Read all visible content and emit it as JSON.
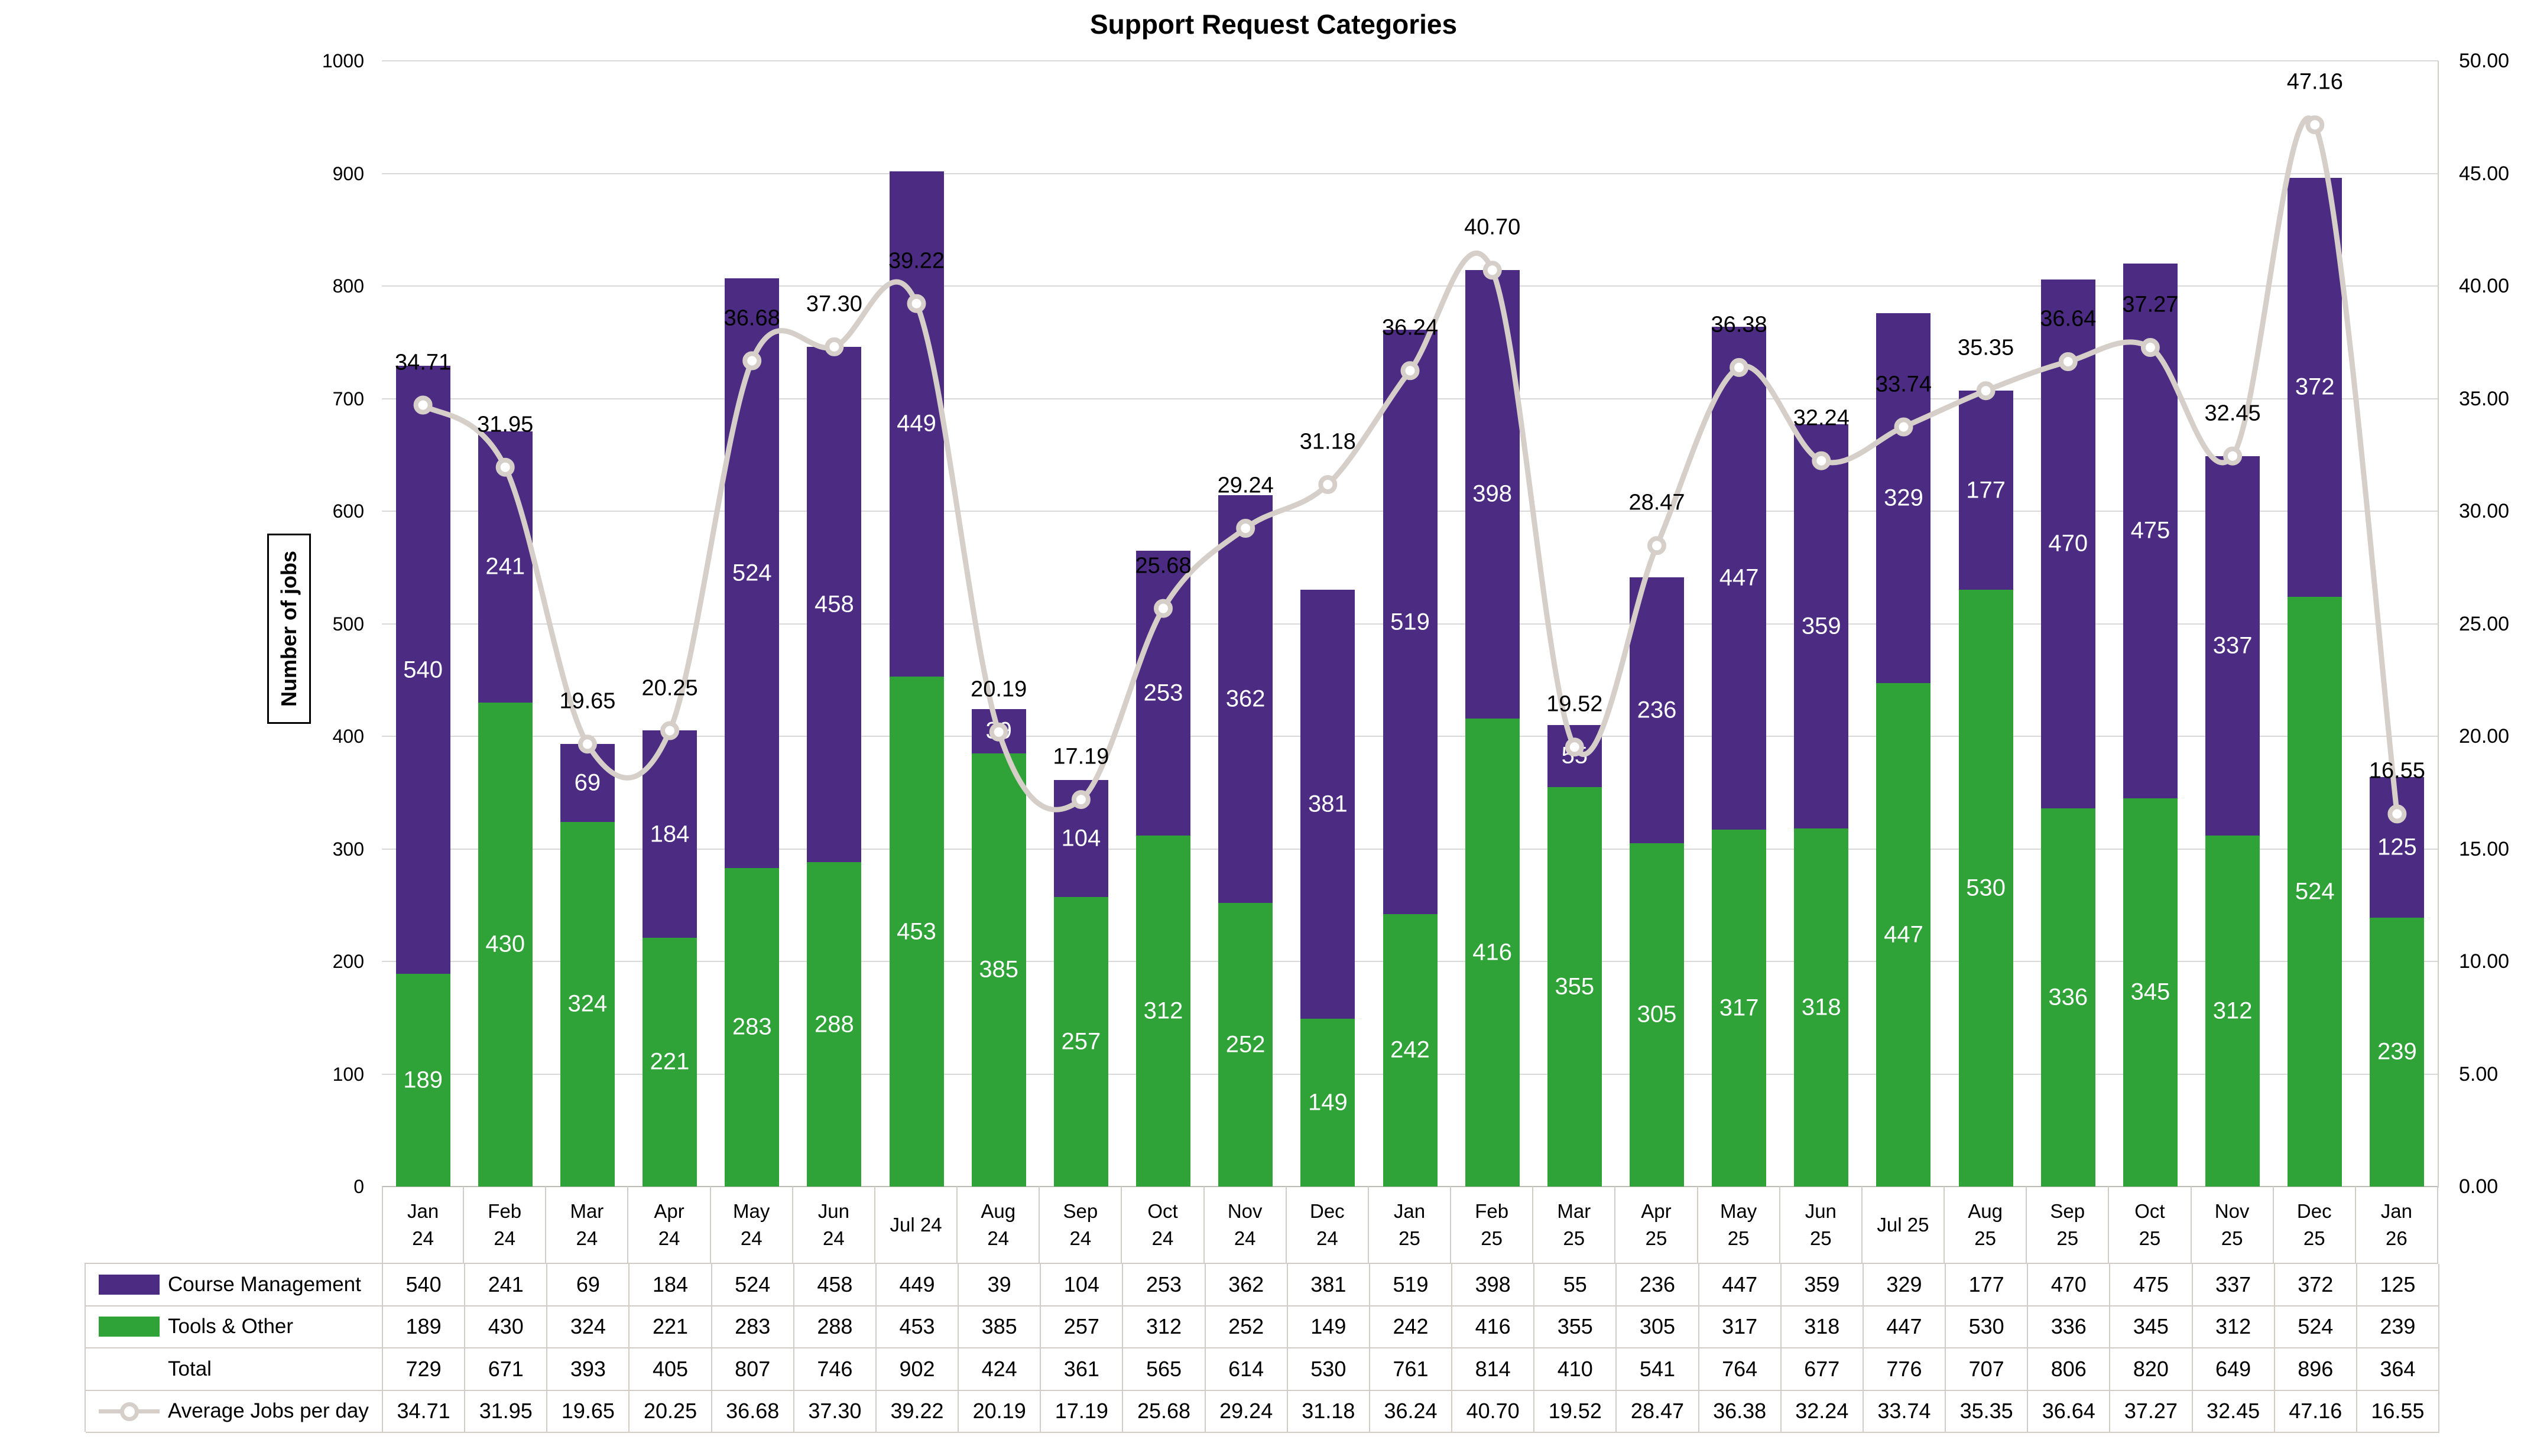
{
  "title": "Support Request Categories",
  "left_axis": {
    "title": "Number of jobs",
    "min": 0,
    "max": 1000,
    "step": 100,
    "tick_labels": [
      "0",
      "100",
      "200",
      "300",
      "400",
      "500",
      "600",
      "700",
      "800",
      "900",
      "1000"
    ]
  },
  "right_axis": {
    "min": 0,
    "max": 50,
    "step": 5,
    "decimals": 2,
    "tick_labels": [
      "0.00",
      "5.00",
      "10.00",
      "15.00",
      "20.00",
      "25.00",
      "30.00",
      "35.00",
      "40.00",
      "45.00",
      "50.00"
    ]
  },
  "colors": {
    "course_management": "#4C2C82",
    "tools_other": "#2FA238",
    "trend_line": "#D6CFC9",
    "gridline": "#D9D9D9",
    "axis_line": "#BFBBB7",
    "table_border": "#D2CCC6",
    "bar_label": "#FFFFFF",
    "text": "#000000"
  },
  "chart_data": {
    "type": "combo-stacked-bar-line",
    "title": "Support Request Categories",
    "ylabel_left": "Number of jobs",
    "left_ylim": [
      0,
      1000
    ],
    "right_ylim": [
      0,
      50
    ],
    "grid": true,
    "legend_position": "attached-data-table-left",
    "categories_display": [
      [
        "Jan",
        "24"
      ],
      [
        "Feb",
        "24"
      ],
      [
        "Mar",
        "24"
      ],
      [
        "Apr",
        "24"
      ],
      [
        "May",
        "24"
      ],
      [
        "Jun",
        "24"
      ],
      [
        "Jul 24"
      ],
      [
        "Aug",
        "24"
      ],
      [
        "Sep",
        "24"
      ],
      [
        "Oct",
        "24"
      ],
      [
        "Nov",
        "24"
      ],
      [
        "Dec",
        "24"
      ],
      [
        "Jan",
        "25"
      ],
      [
        "Feb",
        "25"
      ],
      [
        "Mar",
        "25"
      ],
      [
        "Apr",
        "25"
      ],
      [
        "May",
        "25"
      ],
      [
        "Jun",
        "25"
      ],
      [
        "Jul 25"
      ],
      [
        "Aug",
        "25"
      ],
      [
        "Sep",
        "25"
      ],
      [
        "Oct",
        "25"
      ],
      [
        "Nov",
        "25"
      ],
      [
        "Dec",
        "25"
      ],
      [
        "Jan",
        "26"
      ]
    ],
    "categories": [
      "Jan 24",
      "Feb 24",
      "Mar 24",
      "Apr 24",
      "May 24",
      "Jun 24",
      "Jul 24",
      "Aug 24",
      "Sep 24",
      "Oct 24",
      "Nov 24",
      "Dec 24",
      "Jan 25",
      "Feb 25",
      "Mar 25",
      "Apr 25",
      "May 25",
      "Jun 25",
      "Jul 25",
      "Aug 25",
      "Sep 25",
      "Oct 25",
      "Nov 25",
      "Dec 25",
      "Jan 26"
    ],
    "series": [
      {
        "name": "Course Management",
        "type": "bar",
        "stack": "top",
        "color_key": "course_management",
        "values": [
          540,
          241,
          69,
          184,
          524,
          458,
          449,
          39,
          104,
          253,
          362,
          381,
          519,
          398,
          55,
          236,
          447,
          359,
          329,
          177,
          470,
          475,
          337,
          372,
          125
        ]
      },
      {
        "name": "Tools & Other",
        "type": "bar",
        "stack": "bottom",
        "color_key": "tools_other",
        "values": [
          189,
          430,
          324,
          221,
          283,
          288,
          453,
          385,
          257,
          312,
          252,
          149,
          242,
          416,
          355,
          305,
          317,
          318,
          447,
          530,
          336,
          345,
          312,
          524,
          239
        ]
      },
      {
        "name": "Total",
        "type": "table-only",
        "values": [
          729,
          671,
          393,
          405,
          807,
          746,
          902,
          424,
          361,
          565,
          614,
          530,
          761,
          814,
          410,
          541,
          764,
          677,
          776,
          707,
          806,
          820,
          649,
          896,
          364
        ]
      },
      {
        "name": "Average Jobs per day",
        "type": "line",
        "axis": "right",
        "smooth": true,
        "color_key": "trend_line",
        "values": [
          34.71,
          31.95,
          19.65,
          20.25,
          36.68,
          37.3,
          39.22,
          20.19,
          17.19,
          25.68,
          29.24,
          31.18,
          36.24,
          40.7,
          19.52,
          28.47,
          36.38,
          32.24,
          33.74,
          35.35,
          36.64,
          37.27,
          32.45,
          47.16,
          16.55
        ]
      }
    ]
  },
  "table": {
    "row_labels": [
      "Course Management",
      "Tools & Other",
      "Total",
      "Average Jobs per day"
    ]
  }
}
